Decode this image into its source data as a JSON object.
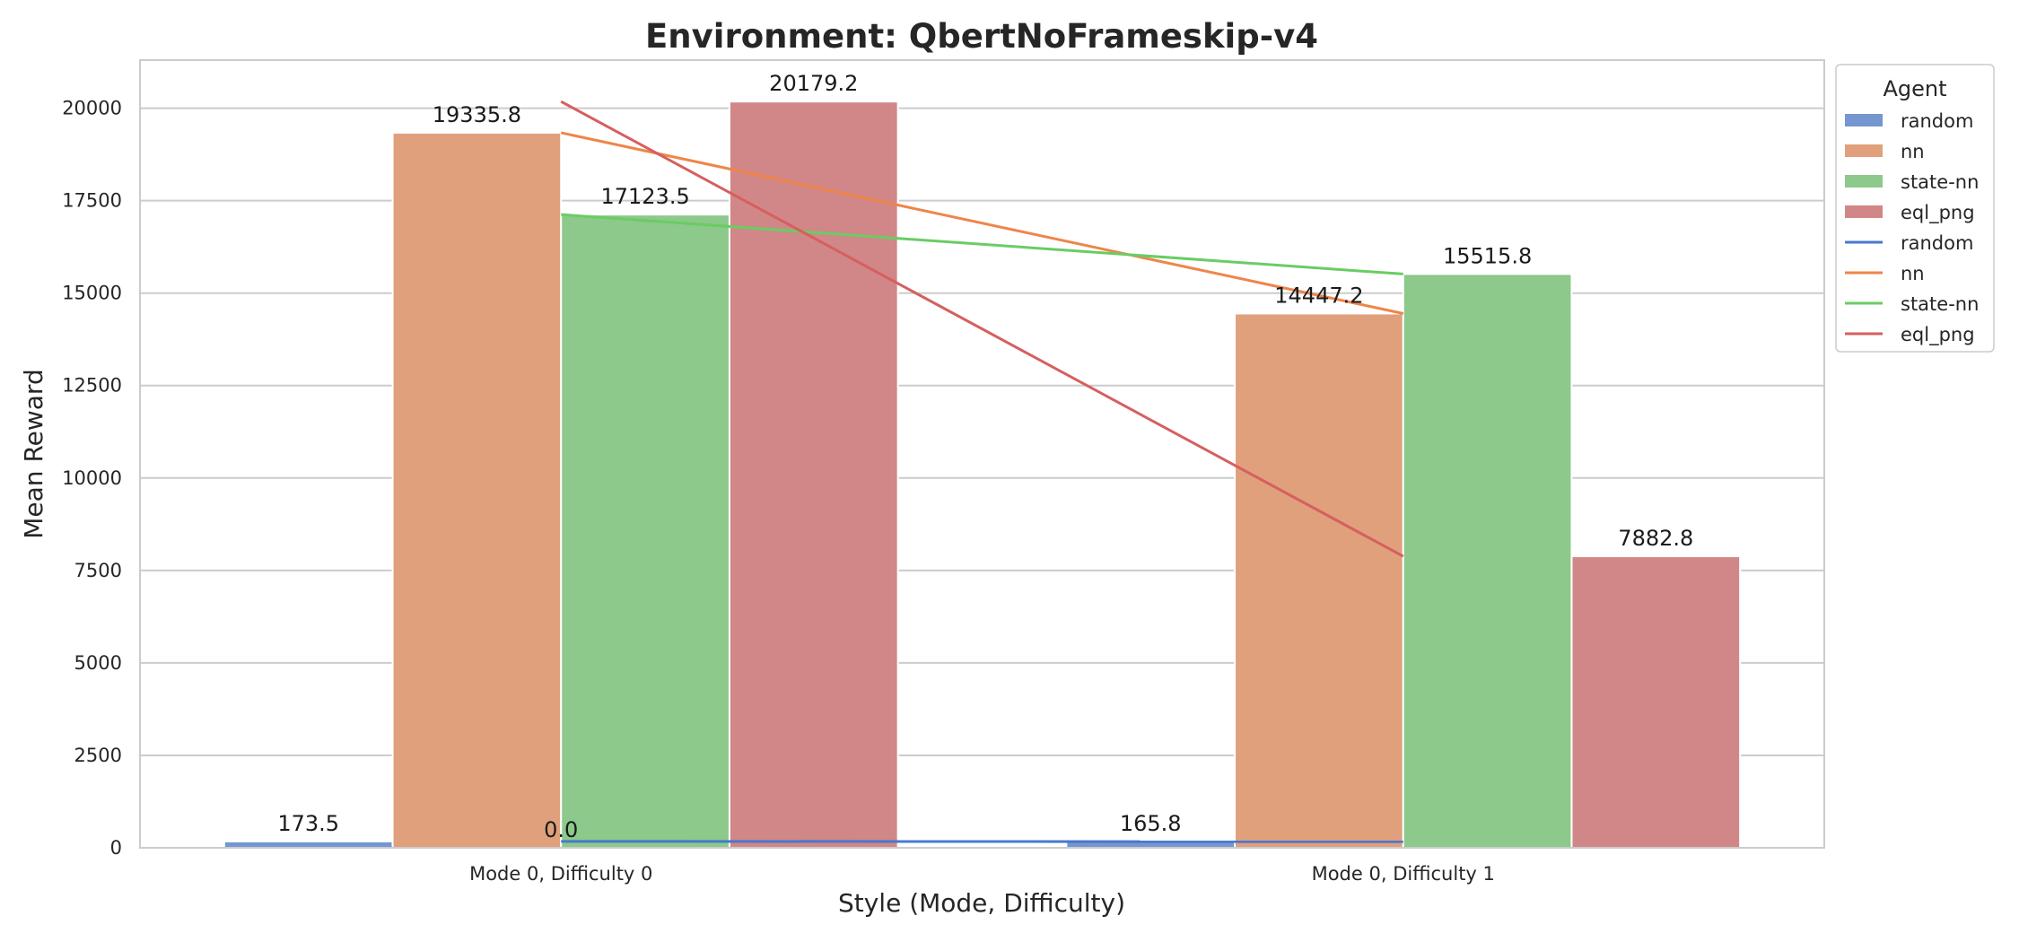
{
  "chart_data": {
    "type": "bar",
    "title": "Environment: QbertNoFrameskip-v4",
    "xlabel": "Style (Mode, Difficulty)",
    "ylabel": "Mean Reward",
    "categories": [
      "Mode 0, Difficulty 0",
      "Mode 0, Difficulty 1"
    ],
    "ylim": [
      0,
      21300
    ],
    "yticks": [
      0,
      2500,
      5000,
      7500,
      10000,
      12500,
      15000,
      17500,
      20000
    ],
    "grid": true,
    "legend": {
      "title": "Agent",
      "placement": "upper-right-outside"
    },
    "series": [
      {
        "name": "random",
        "values": [
          173.5,
          165.8
        ],
        "labels": [
          "173.5",
          "165.8"
        ],
        "bar_color": "#7596d0",
        "line_color": "#4878cf"
      },
      {
        "name": "nn",
        "values": [
          19335.8,
          14447.2
        ],
        "labels": [
          "19335.8",
          "14447.2"
        ],
        "bar_color": "#e0a07b",
        "line_color": "#ee854a"
      },
      {
        "name": "state-nn",
        "values": [
          17123.5,
          15515.8
        ],
        "labels": [
          "17123.5",
          "15515.8"
        ],
        "bar_color": "#8cc98a",
        "line_color": "#6acc64"
      },
      {
        "name": "eql_png",
        "values": [
          20179.2,
          7882.8
        ],
        "labels": [
          "20179.2",
          "7882.8"
        ],
        "bar_color": "#d18787",
        "line_color": "#d65f5f"
      }
    ],
    "lines": [
      {
        "name": "random",
        "values": [
          173.5,
          165.8
        ]
      },
      {
        "name": "nn",
        "values": [
          19335.8,
          14447.2
        ]
      },
      {
        "name": "state-nn",
        "values": [
          17123.5,
          15515.8
        ]
      },
      {
        "name": "eql_png",
        "values": [
          20179.2,
          7882.8
        ]
      }
    ],
    "annotations": [
      {
        "text": "0.0",
        "x_category": 0,
        "y": 0
      }
    ]
  }
}
